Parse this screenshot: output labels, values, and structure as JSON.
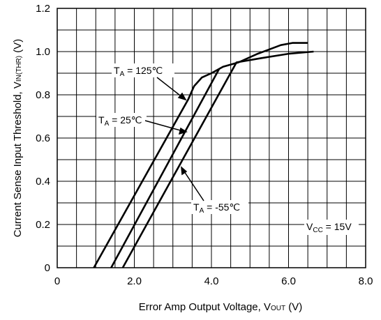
{
  "chart_data": {
    "type": "line",
    "xlabel": {
      "main": "Error Amp Output Voltage, V",
      "sub": "OUT",
      "unit": " (V)"
    },
    "ylabel": {
      "main": "Current Sense Input Threshold, V",
      "sub": "IN(THR)",
      "unit": " (V)"
    },
    "xlim": [
      0,
      8.0
    ],
    "ylim": [
      0,
      1.2
    ],
    "x_ticks": [
      0,
      2.0,
      4.0,
      6.0,
      8.0
    ],
    "x_tick_labels": [
      "0",
      "2.0",
      "4.0",
      "6.0",
      "8.0"
    ],
    "y_ticks": [
      0,
      0.2,
      0.4,
      0.6,
      0.8,
      1.0,
      1.2
    ],
    "y_tick_labels": [
      "0",
      "0.2",
      "0.4",
      "0.6",
      "0.8",
      "1.0",
      "1.2"
    ],
    "grid": true,
    "grid_minor_step": {
      "x": 0.5,
      "y": 0.1
    },
    "series": [
      {
        "name": "TA = 125℃",
        "x": [
          0.95,
          3.4,
          3.55,
          3.75,
          4.0,
          4.3,
          4.7,
          5.2,
          5.8,
          6.1,
          6.5
        ],
        "y": [
          0.0,
          0.78,
          0.84,
          0.88,
          0.9,
          0.93,
          0.95,
          0.99,
          1.03,
          1.04,
          1.04
        ]
      },
      {
        "name": "TA = 25℃",
        "x": [
          1.4,
          4.2
        ],
        "y": [
          0.0,
          0.92
        ]
      },
      {
        "name": "TA = -55℃",
        "x": [
          1.7,
          4.65,
          5.3,
          6.0,
          6.65
        ],
        "y": [
          0.0,
          0.95,
          0.97,
          0.99,
          1.0
        ]
      }
    ],
    "annotations": [
      {
        "text": "T",
        "sub": "A",
        "rest": " = 125℃"
      },
      {
        "text": "T",
        "sub": "A",
        "rest": " = 25℃"
      },
      {
        "text": "T",
        "sub": "A",
        "rest": " = -55℃"
      },
      {
        "text": "V",
        "sub": "CC",
        "rest": " = 15V"
      }
    ]
  }
}
